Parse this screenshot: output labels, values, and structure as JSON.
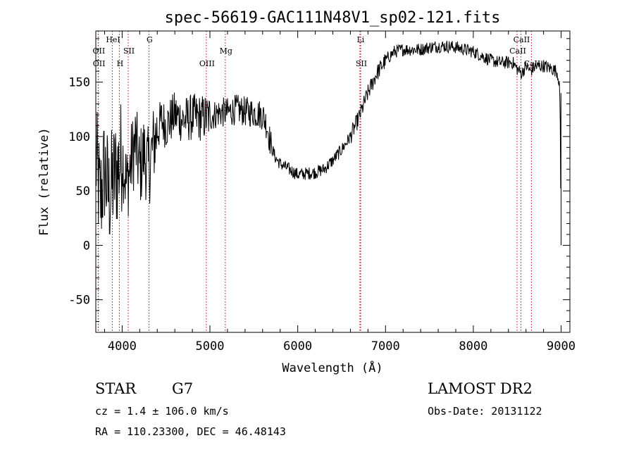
{
  "chart_data": {
    "type": "line",
    "title": "spec-56619-GAC111N48V1_sp02-121.fits",
    "xlabel": "Wavelength (Å)",
    "ylabel": "Flux (relative)",
    "xlim": [
      3700,
      9100
    ],
    "ylim": [
      -80,
      197
    ],
    "x_ticks": [
      4000,
      5000,
      6000,
      7000,
      8000,
      9000
    ],
    "y_ticks": [
      -50,
      0,
      50,
      100,
      150
    ],
    "series": [
      {
        "name": "flux",
        "anchors": [
          [
            3700,
            80
          ],
          [
            3750,
            40
          ],
          [
            3800,
            70
          ],
          [
            3850,
            45
          ],
          [
            3900,
            60
          ],
          [
            3950,
            70
          ],
          [
            4000,
            85
          ],
          [
            4050,
            55
          ],
          [
            4100,
            75
          ],
          [
            4150,
            95
          ],
          [
            4200,
            70
          ],
          [
            4250,
            85
          ],
          [
            4300,
            70
          ],
          [
            4350,
            90
          ],
          [
            4400,
            105
          ],
          [
            4450,
            115
          ],
          [
            4500,
            110
          ],
          [
            4600,
            120
          ],
          [
            4700,
            115
          ],
          [
            4800,
            118
          ],
          [
            4900,
            117
          ],
          [
            5000,
            118
          ],
          [
            5100,
            122
          ],
          [
            5200,
            122
          ],
          [
            5300,
            125
          ],
          [
            5400,
            123
          ],
          [
            5500,
            122
          ],
          [
            5600,
            120
          ],
          [
            5650,
            110
          ],
          [
            5700,
            90
          ],
          [
            5750,
            80
          ],
          [
            5800,
            75
          ],
          [
            5900,
            70
          ],
          [
            6000,
            65
          ],
          [
            6100,
            66
          ],
          [
            6200,
            67
          ],
          [
            6300,
            70
          ],
          [
            6400,
            78
          ],
          [
            6500,
            88
          ],
          [
            6600,
            100
          ],
          [
            6700,
            118
          ],
          [
            6800,
            140
          ],
          [
            6900,
            158
          ],
          [
            7000,
            170
          ],
          [
            7100,
            178
          ],
          [
            7200,
            180
          ],
          [
            7300,
            180
          ],
          [
            7400,
            180
          ],
          [
            7500,
            182
          ],
          [
            7600,
            183
          ],
          [
            7700,
            183
          ],
          [
            7800,
            182
          ],
          [
            7900,
            180
          ],
          [
            8000,
            178
          ],
          [
            8100,
            174
          ],
          [
            8200,
            170
          ],
          [
            8300,
            168
          ],
          [
            8400,
            168
          ],
          [
            8450,
            168
          ],
          [
            8500,
            162
          ],
          [
            8550,
            158
          ],
          [
            8600,
            165
          ],
          [
            8650,
            160
          ],
          [
            8700,
            164
          ],
          [
            8800,
            165
          ],
          [
            8900,
            162
          ],
          [
            8950,
            160
          ],
          [
            8980,
            150
          ],
          [
            8990,
            110
          ],
          [
            9000,
            0
          ]
        ]
      }
    ],
    "lines": [
      {
        "label": "OII",
        "x": 3727,
        "row": 1
      },
      {
        "label": "OII",
        "x": 3729,
        "row": 2
      },
      {
        "label": "HeI",
        "x": 3889,
        "row": 0
      },
      {
        "label": "H",
        "x": 3968,
        "row": 2
      },
      {
        "label": "SII",
        "x": 4069,
        "row": 1
      },
      {
        "label": "G",
        "x": 4305,
        "row": 0
      },
      {
        "label": "OIII",
        "x": 4959,
        "row": 2
      },
      {
        "label": "Mg",
        "x": 5175,
        "row": 1
      },
      {
        "label": "Li",
        "x": 6708,
        "row": 0
      },
      {
        "label": "SII",
        "x": 6717,
        "row": 2
      },
      {
        "label": "CaII",
        "x": 8498,
        "row": 1
      },
      {
        "label": "CaII",
        "x": 8542,
        "row": 0
      },
      {
        "label": "CaII",
        "x": 8662,
        "row": 2
      }
    ]
  },
  "info": {
    "object": "STAR",
    "subclass": "G7",
    "survey": "LAMOST DR2",
    "cz": "cz = 1.4 ± 106.0 km/s",
    "obs_date": "Obs-Date: 20131122",
    "coords": "RA = 110.23300, DEC =  46.48143"
  },
  "colors": {
    "line_marker": "#cc0000",
    "spectrum": "#000000"
  }
}
